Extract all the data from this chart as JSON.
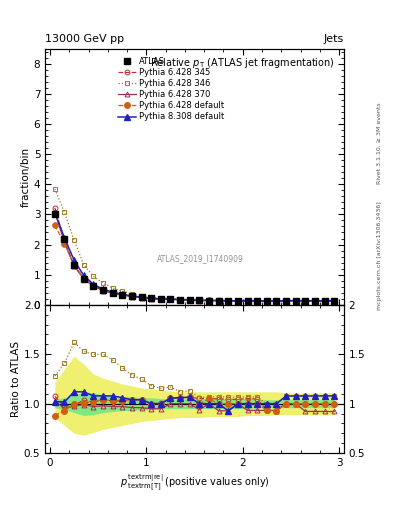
{
  "title_top": "13000 GeV pp",
  "title_right": "Jets",
  "plot_title": "Relative $p_{\\mathrm{T}}$ (ATLAS jet fragmentation)",
  "ylabel_main": "fraction/bin",
  "ylabel_ratio": "Ratio to ATLAS",
  "right_label": "mcplots.cern.ch [arXiv:1306.3436]",
  "right_label2": "Rivet 3.1.10, ≥ 3M events",
  "watermark": "ATLAS_2019_I1740909",
  "main_ylim": [
    0,
    8.5
  ],
  "ratio_ylim": [
    0.5,
    2.0
  ],
  "xlim": [
    -0.05,
    3.05
  ],
  "main_yticks": [
    0,
    1,
    2,
    3,
    4,
    5,
    6,
    7,
    8
  ],
  "ratio_yticks": [
    0.5,
    1.0,
    1.5,
    2.0
  ],
  "xticks": [
    0,
    1,
    2,
    3
  ],
  "x_data": [
    0.05,
    0.15,
    0.25,
    0.35,
    0.45,
    0.55,
    0.65,
    0.75,
    0.85,
    0.95,
    1.05,
    1.15,
    1.25,
    1.35,
    1.45,
    1.55,
    1.65,
    1.75,
    1.85,
    1.95,
    2.05,
    2.15,
    2.25,
    2.35,
    2.45,
    2.55,
    2.65,
    2.75,
    2.85,
    2.95
  ],
  "atlas_data": [
    3.0,
    2.18,
    1.32,
    0.87,
    0.63,
    0.48,
    0.39,
    0.33,
    0.28,
    0.245,
    0.215,
    0.195,
    0.178,
    0.165,
    0.155,
    0.148,
    0.143,
    0.14,
    0.137,
    0.135,
    0.133,
    0.132,
    0.131,
    0.13,
    0.129,
    0.129,
    0.128,
    0.128,
    0.127,
    0.127
  ],
  "py6_345_data": [
    3.22,
    2.13,
    1.3,
    0.9,
    0.64,
    0.5,
    0.4,
    0.34,
    0.29,
    0.255,
    0.215,
    0.196,
    0.188,
    0.175,
    0.165,
    0.156,
    0.15,
    0.147,
    0.143,
    0.141,
    0.14,
    0.138,
    0.122,
    0.121,
    0.129,
    0.129,
    0.128,
    0.128,
    0.127,
    0.127
  ],
  "py6_346_data": [
    3.84,
    3.07,
    2.14,
    1.33,
    0.945,
    0.72,
    0.562,
    0.45,
    0.361,
    0.306,
    0.254,
    0.225,
    0.208,
    0.185,
    0.175,
    0.157,
    0.153,
    0.15,
    0.146,
    0.144,
    0.142,
    0.141,
    0.131,
    0.13,
    0.139,
    0.139,
    0.138,
    0.138,
    0.137,
    0.137
  ],
  "py6_370_data": [
    3.09,
    2.07,
    1.29,
    0.862,
    0.611,
    0.47,
    0.379,
    0.32,
    0.269,
    0.235,
    0.204,
    0.185,
    0.178,
    0.165,
    0.155,
    0.139,
    0.143,
    0.13,
    0.127,
    0.135,
    0.124,
    0.123,
    0.122,
    0.121,
    0.129,
    0.129,
    0.118,
    0.118,
    0.117,
    0.117
  ],
  "py6_default_data": [
    2.64,
    2.03,
    1.32,
    0.878,
    0.643,
    0.499,
    0.402,
    0.34,
    0.291,
    0.255,
    0.215,
    0.195,
    0.188,
    0.175,
    0.165,
    0.148,
    0.15,
    0.14,
    0.137,
    0.135,
    0.133,
    0.132,
    0.122,
    0.121,
    0.129,
    0.129,
    0.128,
    0.128,
    0.127,
    0.127
  ],
  "py8_default_data": [
    3.06,
    2.22,
    1.48,
    0.974,
    0.68,
    0.518,
    0.421,
    0.35,
    0.291,
    0.255,
    0.215,
    0.195,
    0.188,
    0.175,
    0.165,
    0.148,
    0.143,
    0.14,
    0.127,
    0.135,
    0.133,
    0.132,
    0.131,
    0.13,
    0.139,
    0.139,
    0.138,
    0.138,
    0.137,
    0.137
  ],
  "green_band_lo": [
    0.96,
    0.94,
    0.91,
    0.88,
    0.89,
    0.91,
    0.92,
    0.93,
    0.93,
    0.94,
    0.94,
    0.95,
    0.95,
    0.95,
    0.95,
    0.95,
    0.95,
    0.95,
    0.95,
    0.95,
    0.95,
    0.96,
    0.96,
    0.96,
    0.96,
    0.96,
    0.96,
    0.96,
    0.96,
    0.96
  ],
  "green_band_hi": [
    1.04,
    1.06,
    1.09,
    1.12,
    1.11,
    1.09,
    1.08,
    1.07,
    1.07,
    1.06,
    1.06,
    1.05,
    1.05,
    1.05,
    1.05,
    1.05,
    1.05,
    1.05,
    1.05,
    1.05,
    1.05,
    1.04,
    1.04,
    1.04,
    1.04,
    1.04,
    1.04,
    1.04,
    1.04,
    1.04
  ],
  "yellow_band_lo": [
    0.86,
    0.78,
    0.7,
    0.68,
    0.71,
    0.74,
    0.76,
    0.78,
    0.8,
    0.82,
    0.83,
    0.84,
    0.85,
    0.86,
    0.86,
    0.86,
    0.87,
    0.87,
    0.87,
    0.87,
    0.88,
    0.88,
    0.88,
    0.89,
    0.89,
    0.89,
    0.89,
    0.89,
    0.89,
    0.89
  ],
  "yellow_band_hi": [
    1.22,
    1.35,
    1.48,
    1.4,
    1.3,
    1.26,
    1.23,
    1.2,
    1.18,
    1.16,
    1.15,
    1.14,
    1.13,
    1.12,
    1.12,
    1.12,
    1.12,
    1.12,
    1.12,
    1.12,
    1.12,
    1.12,
    1.12,
    1.12,
    1.11,
    1.11,
    1.11,
    1.11,
    1.11,
    1.11
  ],
  "ratio_py6_345": [
    1.073,
    0.977,
    0.985,
    1.034,
    1.016,
    1.042,
    1.026,
    1.03,
    1.036,
    1.041,
    1.0,
    1.005,
    1.056,
    1.061,
    1.065,
    1.054,
    1.049,
    1.05,
    1.044,
    1.044,
    1.053,
    1.045,
    0.932,
    0.931,
    1.0,
    1.0,
    1.0,
    1.0,
    1.0,
    1.0
  ],
  "ratio_py6_346": [
    1.28,
    1.408,
    1.621,
    1.529,
    1.5,
    1.5,
    1.441,
    1.364,
    1.289,
    1.249,
    1.182,
    1.154,
    1.169,
    1.121,
    1.129,
    1.061,
    1.07,
    1.071,
    1.066,
    1.067,
    1.068,
    1.068,
    1.0,
    1.0,
    1.078,
    1.078,
    1.078,
    1.078,
    1.079,
    1.079
  ],
  "ratio_py6_370": [
    1.03,
    0.95,
    0.977,
    0.991,
    0.97,
    0.979,
    0.972,
    0.97,
    0.961,
    0.959,
    0.949,
    0.949,
    1.0,
    1.0,
    1.0,
    0.939,
    1.0,
    0.929,
    0.927,
    1.0,
    0.932,
    0.932,
    0.932,
    0.931,
    1.0,
    1.0,
    0.922,
    0.922,
    0.921,
    0.921
  ],
  "ratio_py6_default": [
    0.88,
    0.931,
    1.0,
    1.009,
    1.021,
    1.04,
    1.031,
    1.03,
    1.039,
    1.041,
    1.0,
    1.0,
    1.056,
    1.061,
    1.065,
    1.0,
    1.049,
    1.0,
    1.0,
    1.0,
    1.0,
    1.0,
    0.932,
    0.931,
    1.0,
    1.0,
    1.0,
    1.0,
    1.0,
    1.0
  ],
  "ratio_py8_default": [
    1.02,
    1.018,
    1.121,
    1.119,
    1.079,
    1.079,
    1.079,
    1.061,
    1.039,
    1.041,
    1.0,
    1.0,
    1.056,
    1.061,
    1.065,
    1.0,
    1.0,
    1.0,
    0.927,
    1.0,
    1.0,
    1.0,
    1.0,
    1.0,
    1.078,
    1.078,
    1.078,
    1.078,
    1.079,
    1.079
  ],
  "color_atlas": "#000000",
  "color_py6_345": "#bf3030",
  "color_py6_346": "#a07820",
  "color_py6_370": "#a03050",
  "color_py6_default": "#d06010",
  "color_py8_default": "#2020c0",
  "green_color": "#80e880",
  "yellow_color": "#f0f070"
}
